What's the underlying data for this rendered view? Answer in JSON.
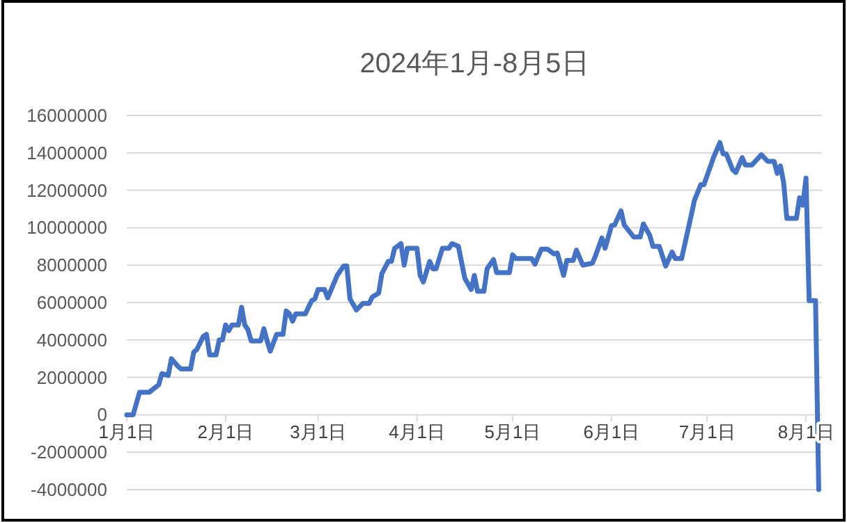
{
  "chart_data": {
    "type": "line",
    "title": "2024年1月-8月5日",
    "color": "#4472c4",
    "grid": "y",
    "xlim": [
      "2024-01-01",
      "2024-08-06"
    ],
    "ylim": [
      -4000000,
      16000000
    ],
    "yticks": [
      -4000000,
      -2000000,
      0,
      2000000,
      4000000,
      6000000,
      8000000,
      10000000,
      12000000,
      14000000,
      16000000
    ],
    "xticks": [
      {
        "value": "2024-01-01",
        "label": "1月1日"
      },
      {
        "value": "2024-02-01",
        "label": "2月1日"
      },
      {
        "value": "2024-03-01",
        "label": "3月1日"
      },
      {
        "value": "2024-04-01",
        "label": "4月1日"
      },
      {
        "value": "2024-05-01",
        "label": "5月1日"
      },
      {
        "value": "2024-06-01",
        "label": "6月1日"
      },
      {
        "value": "2024-07-01",
        "label": "7月1日"
      },
      {
        "value": "2024-08-01",
        "label": "8月1日"
      }
    ],
    "x": [
      "2024-01-01",
      "2024-01-03",
      "2024-01-05",
      "2024-01-08",
      "2024-01-11",
      "2024-01-12",
      "2024-01-14",
      "2024-01-15",
      "2024-01-17",
      "2024-01-18",
      "2024-01-21",
      "2024-01-22",
      "2024-01-23",
      "2024-01-25",
      "2024-01-26",
      "2024-01-27",
      "2024-01-29",
      "2024-01-30",
      "2024-01-31",
      "2024-02-01",
      "2024-02-02",
      "2024-02-03",
      "2024-02-05",
      "2024-02-06",
      "2024-02-07",
      "2024-02-08",
      "2024-02-09",
      "2024-02-12",
      "2024-02-13",
      "2024-02-14",
      "2024-02-15",
      "2024-02-17",
      "2024-02-19",
      "2024-02-20",
      "2024-02-21",
      "2024-02-22",
      "2024-02-23",
      "2024-02-26",
      "2024-02-28",
      "2024-02-29",
      "2024-03-01",
      "2024-03-03",
      "2024-03-04",
      "2024-03-07",
      "2024-03-09",
      "2024-03-10",
      "2024-03-11",
      "2024-03-13",
      "2024-03-15",
      "2024-03-17",
      "2024-03-18",
      "2024-03-20",
      "2024-03-21",
      "2024-03-23",
      "2024-03-24",
      "2024-03-25",
      "2024-03-27",
      "2024-03-28",
      "2024-03-29",
      "2024-04-01",
      "2024-04-02",
      "2024-04-03",
      "2024-04-05",
      "2024-04-06",
      "2024-04-07",
      "2024-04-09",
      "2024-04-11",
      "2024-04-12",
      "2024-04-14",
      "2024-04-16",
      "2024-04-18",
      "2024-04-19",
      "2024-04-20",
      "2024-04-22",
      "2024-04-23",
      "2024-04-25",
      "2024-04-26",
      "2024-04-30",
      "2024-05-01",
      "2024-05-02",
      "2024-05-07",
      "2024-05-08",
      "2024-05-10",
      "2024-05-12",
      "2024-05-14",
      "2024-05-15",
      "2024-05-17",
      "2024-05-18",
      "2024-05-20",
      "2024-05-21",
      "2024-05-23",
      "2024-05-26",
      "2024-05-27",
      "2024-05-29",
      "2024-05-30",
      "2024-06-01",
      "2024-06-02",
      "2024-06-04",
      "2024-06-05",
      "2024-06-08",
      "2024-06-10",
      "2024-06-11",
      "2024-06-13",
      "2024-06-14",
      "2024-06-16",
      "2024-06-18",
      "2024-06-20",
      "2024-06-21",
      "2024-06-23",
      "2024-06-26",
      "2024-06-27",
      "2024-06-29",
      "2024-06-30",
      "2024-07-03",
      "2024-07-05",
      "2024-07-06",
      "2024-07-07",
      "2024-07-09",
      "2024-07-10",
      "2024-07-12",
      "2024-07-13",
      "2024-07-15",
      "2024-07-18",
      "2024-07-20",
      "2024-07-22",
      "2024-07-23",
      "2024-07-24",
      "2024-07-25",
      "2024-07-26",
      "2024-07-29",
      "2024-07-30",
      "2024-07-31",
      "2024-08-01",
      "2024-08-02",
      "2024-08-04",
      "2024-08-05"
    ],
    "values": [
      0,
      0,
      1200000,
      1200000,
      1600000,
      2200000,
      2100000,
      3000000,
      2600000,
      2450000,
      2450000,
      3350000,
      3500000,
      4200000,
      4300000,
      3200000,
      3200000,
      4000000,
      4000000,
      4800000,
      4500000,
      4800000,
      4800000,
      5750000,
      4800000,
      4550000,
      3950000,
      3950000,
      4600000,
      3950000,
      3400000,
      4300000,
      4300000,
      5550000,
      5400000,
      5000000,
      5400000,
      5400000,
      6100000,
      6200000,
      6700000,
      6700000,
      6250000,
      7450000,
      7950000,
      7950000,
      6200000,
      5600000,
      5950000,
      5950000,
      6300000,
      6500000,
      7550000,
      8200000,
      8200000,
      8900000,
      9150000,
      8000000,
      8900000,
      8900000,
      7450000,
      7100000,
      8200000,
      7800000,
      7800000,
      8900000,
      8900000,
      9150000,
      9000000,
      7300000,
      6700000,
      7450000,
      6600000,
      6600000,
      7800000,
      8300000,
      7600000,
      7600000,
      8550000,
      8350000,
      8350000,
      8050000,
      8850000,
      8850000,
      8600000,
      8650000,
      7450000,
      8250000,
      8250000,
      8800000,
      8000000,
      8100000,
      8500000,
      9450000,
      8900000,
      10100000,
      10150000,
      10900000,
      10150000,
      9500000,
      9500000,
      10200000,
      9600000,
      9000000,
      9000000,
      7950000,
      8700000,
      8350000,
      8350000,
      10650000,
      11450000,
      12300000,
      12300000,
      13750000,
      14550000,
      13950000,
      13950000,
      13100000,
      12950000,
      13750000,
      13350000,
      13350000,
      13900000,
      13550000,
      13550000,
      12900000,
      13300000,
      12400000,
      10500000,
      10500000,
      11600000,
      11200000,
      12650000,
      6100000,
      6100000,
      -4000000
    ]
  }
}
